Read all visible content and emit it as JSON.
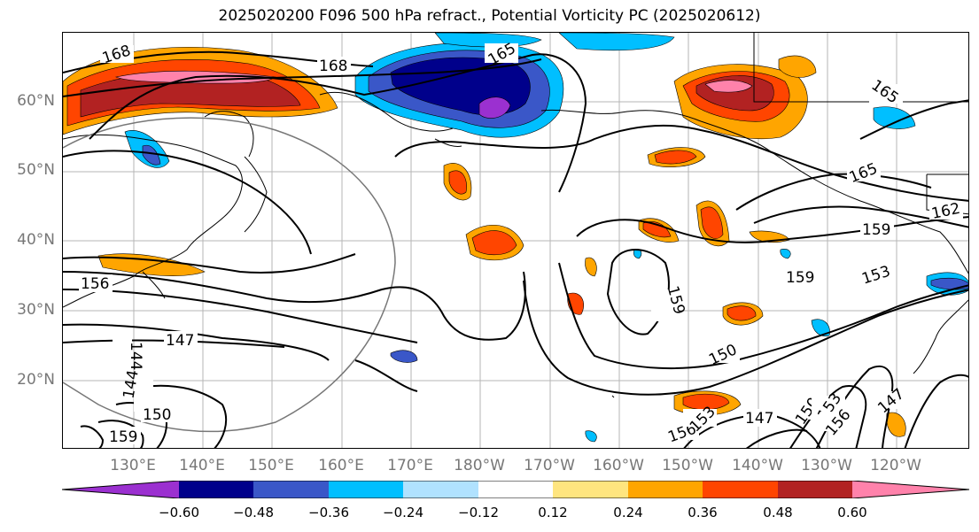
{
  "title": "2025020200 F096 500 hPa refract., Potential Vorticity PC (2025020612)",
  "lat_labels": [
    "60°N",
    "50°N",
    "40°N",
    "30°N",
    "20°N"
  ],
  "lon_labels": [
    "130°E",
    "140°E",
    "150°E",
    "160°E",
    "170°E",
    "180°W",
    "170°W",
    "160°W",
    "150°W",
    "140°W",
    "130°W",
    "120°W"
  ],
  "colorbar": {
    "ticks": [
      "−0.60",
      "−0.48",
      "−0.36",
      "−0.24",
      "−0.12",
      "0.12",
      "0.24",
      "0.36",
      "0.48",
      "0.60"
    ],
    "colors": [
      "#9b30d0",
      "#00008b",
      "#3a57c8",
      "#00bfff",
      "#b0e2ff",
      "#ffffff",
      "#ffe57f",
      "#ffa500",
      "#ff4500",
      "#b22222",
      "#ff82ab"
    ]
  },
  "contour_labels": [
    "168",
    "168",
    "165",
    "165",
    "165",
    "162",
    "159",
    "159",
    "159",
    "156",
    "153",
    "150",
    "147",
    "147",
    "147",
    "144",
    "144",
    "159",
    "156",
    "153",
    "150",
    "150",
    "153",
    "156"
  ]
}
